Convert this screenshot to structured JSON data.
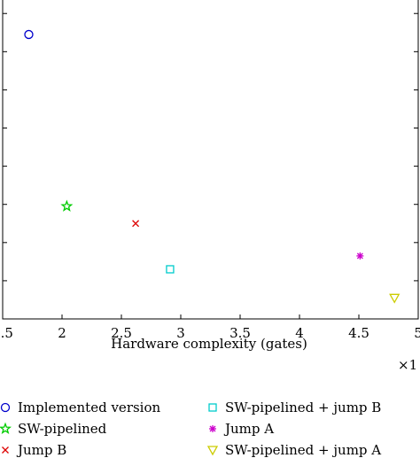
{
  "chart_data": {
    "type": "scatter",
    "title": "",
    "xlabel": "Hardware complexity (gates)",
    "ylabel": "",
    "x_exponent_label": "×1",
    "xlim": [
      1.5,
      5
    ],
    "xticks": [
      1.5,
      2,
      2.5,
      3,
      3.5,
      4,
      4.5,
      5
    ],
    "xtick_labels": [
      "1.5",
      "2",
      "2.5",
      "3",
      "3.5",
      "4",
      "4.5",
      "5"
    ],
    "ylim": [
      0,
      8.4
    ],
    "yticks": [
      1,
      2,
      3,
      4,
      5,
      6,
      7,
      8
    ],
    "grid": false,
    "legend_position": "bottom",
    "series": [
      {
        "name": "Implemented version",
        "marker": "circle",
        "color": "#0000cc",
        "points": [
          {
            "x": 1.72,
            "y": 7.45
          }
        ]
      },
      {
        "name": "SW-pipelined",
        "marker": "star",
        "color": "#00cc00",
        "points": [
          {
            "x": 2.04,
            "y": 2.95
          }
        ]
      },
      {
        "name": "Jump B",
        "marker": "x",
        "color": "#dd0000",
        "points": [
          {
            "x": 2.62,
            "y": 2.5
          }
        ]
      },
      {
        "name": "SW-pipelined + jump B",
        "marker": "square",
        "color": "#00cccc",
        "points": [
          {
            "x": 2.91,
            "y": 1.3
          }
        ]
      },
      {
        "name": "Jump A",
        "marker": "asterisk",
        "color": "#cc00cc",
        "points": [
          {
            "x": 4.51,
            "y": 1.65
          }
        ]
      },
      {
        "name": "SW-pipelined + jump A",
        "marker": "triangle-down",
        "color": "#cccc00",
        "points": [
          {
            "x": 4.8,
            "y": 0.55
          }
        ]
      }
    ]
  }
}
